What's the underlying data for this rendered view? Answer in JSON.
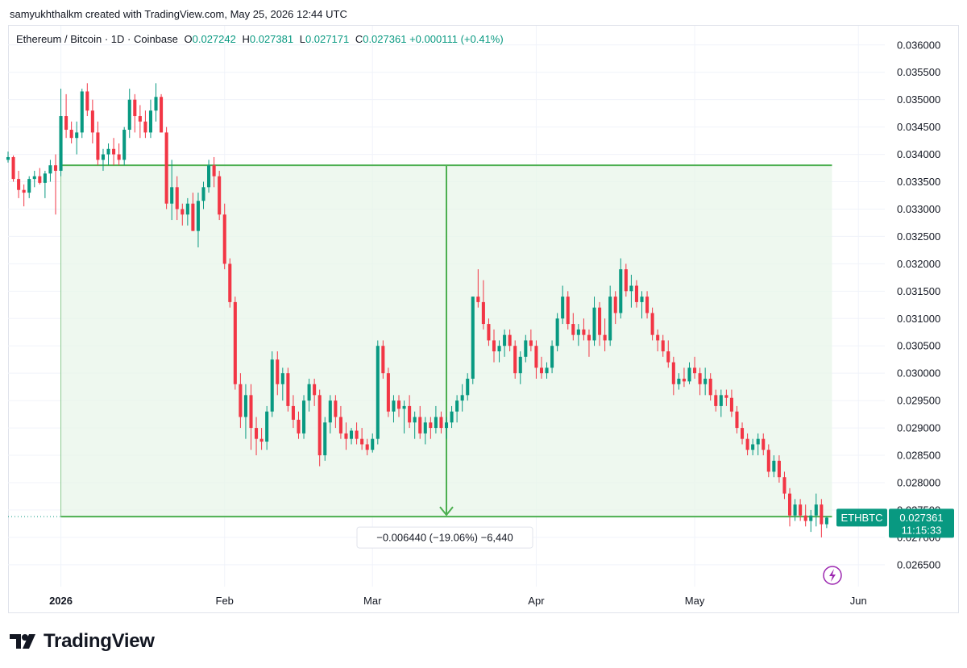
{
  "credit": "samyukhthalkm created with TradingView.com, May 25, 2026 12:44 UTC",
  "legend": {
    "symbol": "Ethereum / Bitcoin · 1D · Coinbase",
    "open_label": "O",
    "open": "0.027242",
    "high_label": "H",
    "high": "0.027381",
    "low_label": "L",
    "low": "0.027171",
    "close_label": "C",
    "close": "0.027361",
    "change": "+0.000111 (+0.41%)"
  },
  "price_tag": {
    "ticker": "ETHBTC",
    "price": "0.027361",
    "countdown": "11:15:33"
  },
  "measure": {
    "label": "−0.006440 (−19.06%) −6,440",
    "from_value": 0.0338,
    "to_value": 0.02738
  },
  "brand": "TradingView",
  "colors": {
    "up": "#089981",
    "down": "#f23645",
    "measure": "#4caf50",
    "measure_fill": "#e8f5e9"
  },
  "chart_data": {
    "type": "candlestick",
    "y_axis": {
      "range": [
        0.0261,
        0.03635
      ],
      "ticks": [
        "0.036000",
        "0.035500",
        "0.035000",
        "0.034500",
        "0.034000",
        "0.033500",
        "0.033000",
        "0.032500",
        "0.032000",
        "0.031500",
        "0.031000",
        "0.030500",
        "0.030000",
        "0.029500",
        "0.029000",
        "0.028500",
        "0.028000",
        "0.027500",
        "0.027000",
        "0.026500"
      ]
    },
    "x_axis": {
      "labels": [
        {
          "text": "2026",
          "bold": true,
          "day": 0
        },
        {
          "text": "Feb",
          "bold": false,
          "day": 31
        },
        {
          "text": "Mar",
          "bold": false,
          "day": 59
        },
        {
          "text": "Apr",
          "bold": false,
          "day": 90
        },
        {
          "text": "May",
          "bold": false,
          "day": 120
        },
        {
          "text": "Jun",
          "bold": false,
          "day": 151
        }
      ],
      "first_day": -10,
      "last_day": 156
    },
    "candles": [
      [
        0.0339,
        0.03405,
        0.03385,
        0.03395
      ],
      [
        0.03395,
        0.03398,
        0.0335,
        0.03355
      ],
      [
        0.03355,
        0.0337,
        0.0332,
        0.03335
      ],
      [
        0.03335,
        0.03345,
        0.03305,
        0.0333
      ],
      [
        0.0333,
        0.0336,
        0.0332,
        0.03355
      ],
      [
        0.03355,
        0.0337,
        0.0334,
        0.0336
      ],
      [
        0.0336,
        0.03375,
        0.03345,
        0.03348
      ],
      [
        0.03348,
        0.0337,
        0.0332,
        0.03365
      ],
      [
        0.03365,
        0.0339,
        0.0335,
        0.0338
      ],
      [
        0.0338,
        0.034,
        0.0329,
        0.0337
      ],
      [
        0.0337,
        0.0352,
        0.0336,
        0.0347
      ],
      [
        0.0347,
        0.0351,
        0.0343,
        0.03445
      ],
      [
        0.03445,
        0.0346,
        0.0342,
        0.0343
      ],
      [
        0.0343,
        0.0346,
        0.034,
        0.0344
      ],
      [
        0.0344,
        0.0352,
        0.0343,
        0.03515
      ],
      [
        0.03515,
        0.0353,
        0.0347,
        0.0348
      ],
      [
        0.0348,
        0.035,
        0.0342,
        0.0344
      ],
      [
        0.0344,
        0.0346,
        0.0338,
        0.0339
      ],
      [
        0.0339,
        0.0341,
        0.0337,
        0.034
      ],
      [
        0.034,
        0.0342,
        0.0338,
        0.0341
      ],
      [
        0.0341,
        0.0343,
        0.0338,
        0.034
      ],
      [
        0.034,
        0.0342,
        0.0338,
        0.0339
      ],
      [
        0.0339,
        0.0345,
        0.0338,
        0.03445
      ],
      [
        0.03445,
        0.0352,
        0.0343,
        0.035
      ],
      [
        0.035,
        0.0351,
        0.0344,
        0.0347
      ],
      [
        0.0347,
        0.0349,
        0.0343,
        0.0346
      ],
      [
        0.0346,
        0.0348,
        0.0343,
        0.0344
      ],
      [
        0.0344,
        0.035,
        0.0343,
        0.0348
      ],
      [
        0.0348,
        0.0353,
        0.0346,
        0.03505
      ],
      [
        0.03505,
        0.0351,
        0.0344,
        0.0344
      ],
      [
        0.0344,
        0.0345,
        0.033,
        0.0331
      ],
      [
        0.0331,
        0.0339,
        0.0328,
        0.0334
      ],
      [
        0.0334,
        0.0336,
        0.0328,
        0.033
      ],
      [
        0.033,
        0.0331,
        0.0327,
        0.0329
      ],
      [
        0.0329,
        0.0332,
        0.0327,
        0.0331
      ],
      [
        0.0331,
        0.0333,
        0.0326,
        0.0326
      ],
      [
        0.0326,
        0.0333,
        0.0323,
        0.03315
      ],
      [
        0.03315,
        0.0335,
        0.033,
        0.0334
      ],
      [
        0.0334,
        0.0339,
        0.0333,
        0.0338
      ],
      [
        0.0338,
        0.03395,
        0.0334,
        0.0336
      ],
      [
        0.0336,
        0.0337,
        0.0328,
        0.0329
      ],
      [
        0.0329,
        0.0331,
        0.0319,
        0.032
      ],
      [
        0.032,
        0.0321,
        0.0312,
        0.0313
      ],
      [
        0.0313,
        0.0314,
        0.0297,
        0.0298
      ],
      [
        0.0298,
        0.03,
        0.029,
        0.0292
      ],
      [
        0.0292,
        0.0298,
        0.0288,
        0.0296
      ],
      [
        0.0296,
        0.0298,
        0.0286,
        0.029
      ],
      [
        0.029,
        0.0292,
        0.0285,
        0.0288
      ],
      [
        0.0288,
        0.029,
        0.0286,
        0.02875
      ],
      [
        0.02875,
        0.0294,
        0.0286,
        0.0293
      ],
      [
        0.0293,
        0.0304,
        0.0292,
        0.03025
      ],
      [
        0.03025,
        0.0304,
        0.0296,
        0.0298
      ],
      [
        0.0298,
        0.0301,
        0.0295,
        0.03
      ],
      [
        0.03,
        0.0301,
        0.0293,
        0.0294
      ],
      [
        0.0294,
        0.0296,
        0.029,
        0.02915
      ],
      [
        0.02915,
        0.0293,
        0.0288,
        0.0289
      ],
      [
        0.0289,
        0.0296,
        0.0288,
        0.0295
      ],
      [
        0.0295,
        0.0299,
        0.0293,
        0.0298
      ],
      [
        0.0298,
        0.0299,
        0.0294,
        0.0296
      ],
      [
        0.0296,
        0.0297,
        0.0283,
        0.0285
      ],
      [
        0.0285,
        0.0292,
        0.0284,
        0.0291
      ],
      [
        0.0291,
        0.0296,
        0.0289,
        0.0295
      ],
      [
        0.0295,
        0.0296,
        0.029,
        0.0292
      ],
      [
        0.0292,
        0.0294,
        0.0288,
        0.0289
      ],
      [
        0.0289,
        0.0291,
        0.0286,
        0.0288
      ],
      [
        0.0288,
        0.029,
        0.0287,
        0.02895
      ],
      [
        0.02895,
        0.0291,
        0.0287,
        0.0288
      ],
      [
        0.0288,
        0.029,
        0.0286,
        0.0287
      ],
      [
        0.0287,
        0.0288,
        0.0285,
        0.0286
      ],
      [
        0.0286,
        0.0289,
        0.02855,
        0.0288
      ],
      [
        0.0288,
        0.0306,
        0.0287,
        0.0305
      ],
      [
        0.0305,
        0.0306,
        0.0299,
        0.03
      ],
      [
        0.03,
        0.0301,
        0.0292,
        0.0293
      ],
      [
        0.0293,
        0.0296,
        0.0291,
        0.0295
      ],
      [
        0.0295,
        0.0296,
        0.0292,
        0.02935
      ],
      [
        0.02935,
        0.0295,
        0.0289,
        0.0294
      ],
      [
        0.0294,
        0.0296,
        0.029,
        0.0291
      ],
      [
        0.0291,
        0.0293,
        0.0288,
        0.0292
      ],
      [
        0.0292,
        0.0294,
        0.0288,
        0.0289
      ],
      [
        0.0289,
        0.0292,
        0.0287,
        0.0291
      ],
      [
        0.0291,
        0.0292,
        0.0288,
        0.029
      ],
      [
        0.029,
        0.0294,
        0.0289,
        0.0292
      ],
      [
        0.0292,
        0.0293,
        0.0289,
        0.029
      ],
      [
        0.029,
        0.0292,
        0.0288,
        0.0291
      ],
      [
        0.0291,
        0.0294,
        0.029,
        0.0293
      ],
      [
        0.0293,
        0.0296,
        0.0291,
        0.0295
      ],
      [
        0.0295,
        0.0298,
        0.0293,
        0.0296
      ],
      [
        0.0296,
        0.03,
        0.0295,
        0.0299
      ],
      [
        0.0299,
        0.0314,
        0.0298,
        0.0314
      ],
      [
        0.0314,
        0.0319,
        0.0312,
        0.0313
      ],
      [
        0.0313,
        0.0317,
        0.0308,
        0.0309
      ],
      [
        0.0309,
        0.031,
        0.0305,
        0.0306
      ],
      [
        0.0306,
        0.0308,
        0.0302,
        0.0304
      ],
      [
        0.0304,
        0.0306,
        0.0302,
        0.0305
      ],
      [
        0.0305,
        0.0308,
        0.0303,
        0.0307
      ],
      [
        0.0307,
        0.0308,
        0.0304,
        0.0305
      ],
      [
        0.0305,
        0.0306,
        0.0299,
        0.03
      ],
      [
        0.03,
        0.0304,
        0.0298,
        0.0303
      ],
      [
        0.0303,
        0.0307,
        0.0302,
        0.0306
      ],
      [
        0.0306,
        0.0308,
        0.0304,
        0.0305
      ],
      [
        0.0305,
        0.0306,
        0.0299,
        0.0301
      ],
      [
        0.0301,
        0.0303,
        0.0299,
        0.03
      ],
      [
        0.03,
        0.0302,
        0.0299,
        0.0301
      ],
      [
        0.0301,
        0.0306,
        0.03,
        0.0305
      ],
      [
        0.0305,
        0.0311,
        0.0304,
        0.031
      ],
      [
        0.031,
        0.0316,
        0.0309,
        0.0314
      ],
      [
        0.0314,
        0.0315,
        0.0308,
        0.0309
      ],
      [
        0.0309,
        0.0311,
        0.0306,
        0.0307
      ],
      [
        0.0307,
        0.0309,
        0.0305,
        0.0308
      ],
      [
        0.0308,
        0.031,
        0.0306,
        0.0307
      ],
      [
        0.0307,
        0.0308,
        0.0303,
        0.0306
      ],
      [
        0.0306,
        0.0314,
        0.0305,
        0.0312
      ],
      [
        0.0312,
        0.0313,
        0.0305,
        0.0307
      ],
      [
        0.0307,
        0.031,
        0.0304,
        0.0306
      ],
      [
        0.0306,
        0.0316,
        0.0305,
        0.0314
      ],
      [
        0.0314,
        0.0315,
        0.0309,
        0.0311
      ],
      [
        0.0311,
        0.0321,
        0.031,
        0.0319
      ],
      [
        0.0319,
        0.032,
        0.0314,
        0.0315
      ],
      [
        0.0315,
        0.0318,
        0.0312,
        0.0316
      ],
      [
        0.0316,
        0.0317,
        0.0312,
        0.0313
      ],
      [
        0.0313,
        0.0315,
        0.031,
        0.0314
      ],
      [
        0.0314,
        0.0315,
        0.031,
        0.0311
      ],
      [
        0.0311,
        0.0312,
        0.0306,
        0.0307
      ],
      [
        0.0307,
        0.0308,
        0.0304,
        0.0306
      ],
      [
        0.0306,
        0.0307,
        0.0303,
        0.0304
      ],
      [
        0.0304,
        0.0306,
        0.0301,
        0.0302
      ],
      [
        0.0302,
        0.0303,
        0.0296,
        0.0298
      ],
      [
        0.0298,
        0.03,
        0.0297,
        0.0299
      ],
      [
        0.0299,
        0.0301,
        0.02975,
        0.02985
      ],
      [
        0.02985,
        0.0302,
        0.0298,
        0.0301
      ],
      [
        0.0301,
        0.0303,
        0.0299,
        0.03
      ],
      [
        0.03,
        0.0301,
        0.0296,
        0.0298
      ],
      [
        0.0298,
        0.0301,
        0.0296,
        0.0299
      ],
      [
        0.0299,
        0.03,
        0.0295,
        0.0296
      ],
      [
        0.0296,
        0.0297,
        0.0293,
        0.0294
      ],
      [
        0.0294,
        0.0297,
        0.0292,
        0.0296
      ],
      [
        0.0296,
        0.0297,
        0.0294,
        0.02955
      ],
      [
        0.02955,
        0.0297,
        0.0292,
        0.0293
      ],
      [
        0.0293,
        0.0294,
        0.0289,
        0.029
      ],
      [
        0.029,
        0.0291,
        0.0287,
        0.0288
      ],
      [
        0.0288,
        0.0289,
        0.0285,
        0.0286
      ],
      [
        0.0286,
        0.0288,
        0.0285,
        0.0287
      ],
      [
        0.0287,
        0.0289,
        0.0285,
        0.0288
      ],
      [
        0.0288,
        0.0289,
        0.0285,
        0.0286
      ],
      [
        0.0286,
        0.0287,
        0.0281,
        0.0282
      ],
      [
        0.0282,
        0.0285,
        0.0281,
        0.0284
      ],
      [
        0.0284,
        0.0285,
        0.028,
        0.0281
      ],
      [
        0.0281,
        0.0282,
        0.0277,
        0.0278
      ],
      [
        0.0278,
        0.0279,
        0.0272,
        0.0274
      ],
      [
        0.0274,
        0.0277,
        0.0273,
        0.0276
      ],
      [
        0.0276,
        0.0277,
        0.0273,
        0.0274
      ],
      [
        0.0274,
        0.0276,
        0.0272,
        0.0273
      ],
      [
        0.0273,
        0.0275,
        0.0271,
        0.0274
      ],
      [
        0.0274,
        0.0278,
        0.0272,
        0.0276
      ],
      [
        0.0276,
        0.0277,
        0.027,
        0.02724
      ],
      [
        0.02724,
        0.02738,
        0.02717,
        0.02736
      ]
    ]
  }
}
